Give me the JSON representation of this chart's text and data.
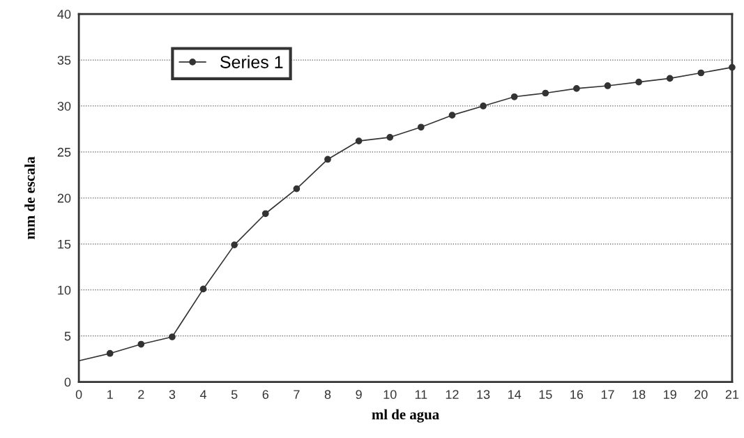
{
  "chart_data": {
    "type": "line",
    "xlabel": "ml de agua",
    "ylabel": "mm de escala",
    "x": [
      1,
      2,
      3,
      4,
      5,
      6,
      7,
      8,
      9,
      10,
      11,
      12,
      13,
      14,
      15,
      16,
      17,
      18,
      19,
      20,
      21
    ],
    "series": [
      {
        "name": "Series 1",
        "color": "#333333",
        "marker": "circle",
        "values": [
          3.1,
          4.1,
          4.9,
          10.1,
          14.9,
          18.3,
          21.0,
          24.2,
          26.2,
          26.6,
          27.7,
          29.0,
          30.0,
          31.0,
          31.4,
          31.9,
          32.2,
          32.6,
          33.0,
          33.6,
          34.2
        ]
      },
      {
        "color": "#333333",
        "marker": "none",
        "x": [
          0,
          1
        ],
        "values": [
          2.3,
          3.1
        ]
      }
    ],
    "xlim": [
      0,
      21
    ],
    "xticks": [
      0,
      1,
      2,
      3,
      4,
      5,
      6,
      7,
      8,
      9,
      10,
      11,
      12,
      13,
      14,
      15,
      16,
      17,
      18,
      19,
      20,
      21
    ],
    "ylim": [
      0,
      40
    ],
    "yticks": [
      0,
      5,
      10,
      15,
      20,
      25,
      30,
      35,
      40
    ],
    "grid": "y",
    "legend": "top left",
    "line_style": "solid"
  }
}
